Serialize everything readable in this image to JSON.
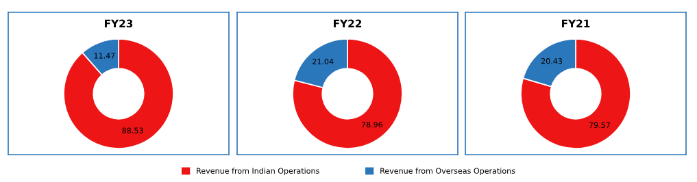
{
  "chart_data": [
    {
      "type": "donut",
      "title": "FY23",
      "categories": [
        "Revenue from Indian Operations",
        "Revenue from Overseas Operations"
      ],
      "values": [
        88.53,
        11.47
      ],
      "colors": [
        "#ee1516",
        "#2b77bc"
      ],
      "data_labels": true,
      "legend": "bottom"
    },
    {
      "type": "donut",
      "title": "FY22",
      "categories": [
        null,
        null
      ],
      "values": [
        78.96,
        21.04
      ],
      "colors": [
        "#ee1516",
        "#2b77bc"
      ],
      "data_labels": true
    },
    {
      "type": "donut",
      "title": "FY21",
      "categories": [
        null,
        null
      ],
      "values": [
        79.57,
        20.43
      ],
      "colors": [
        "#ee1516",
        "#2b77bc"
      ],
      "data_labels": true
    }
  ]
}
